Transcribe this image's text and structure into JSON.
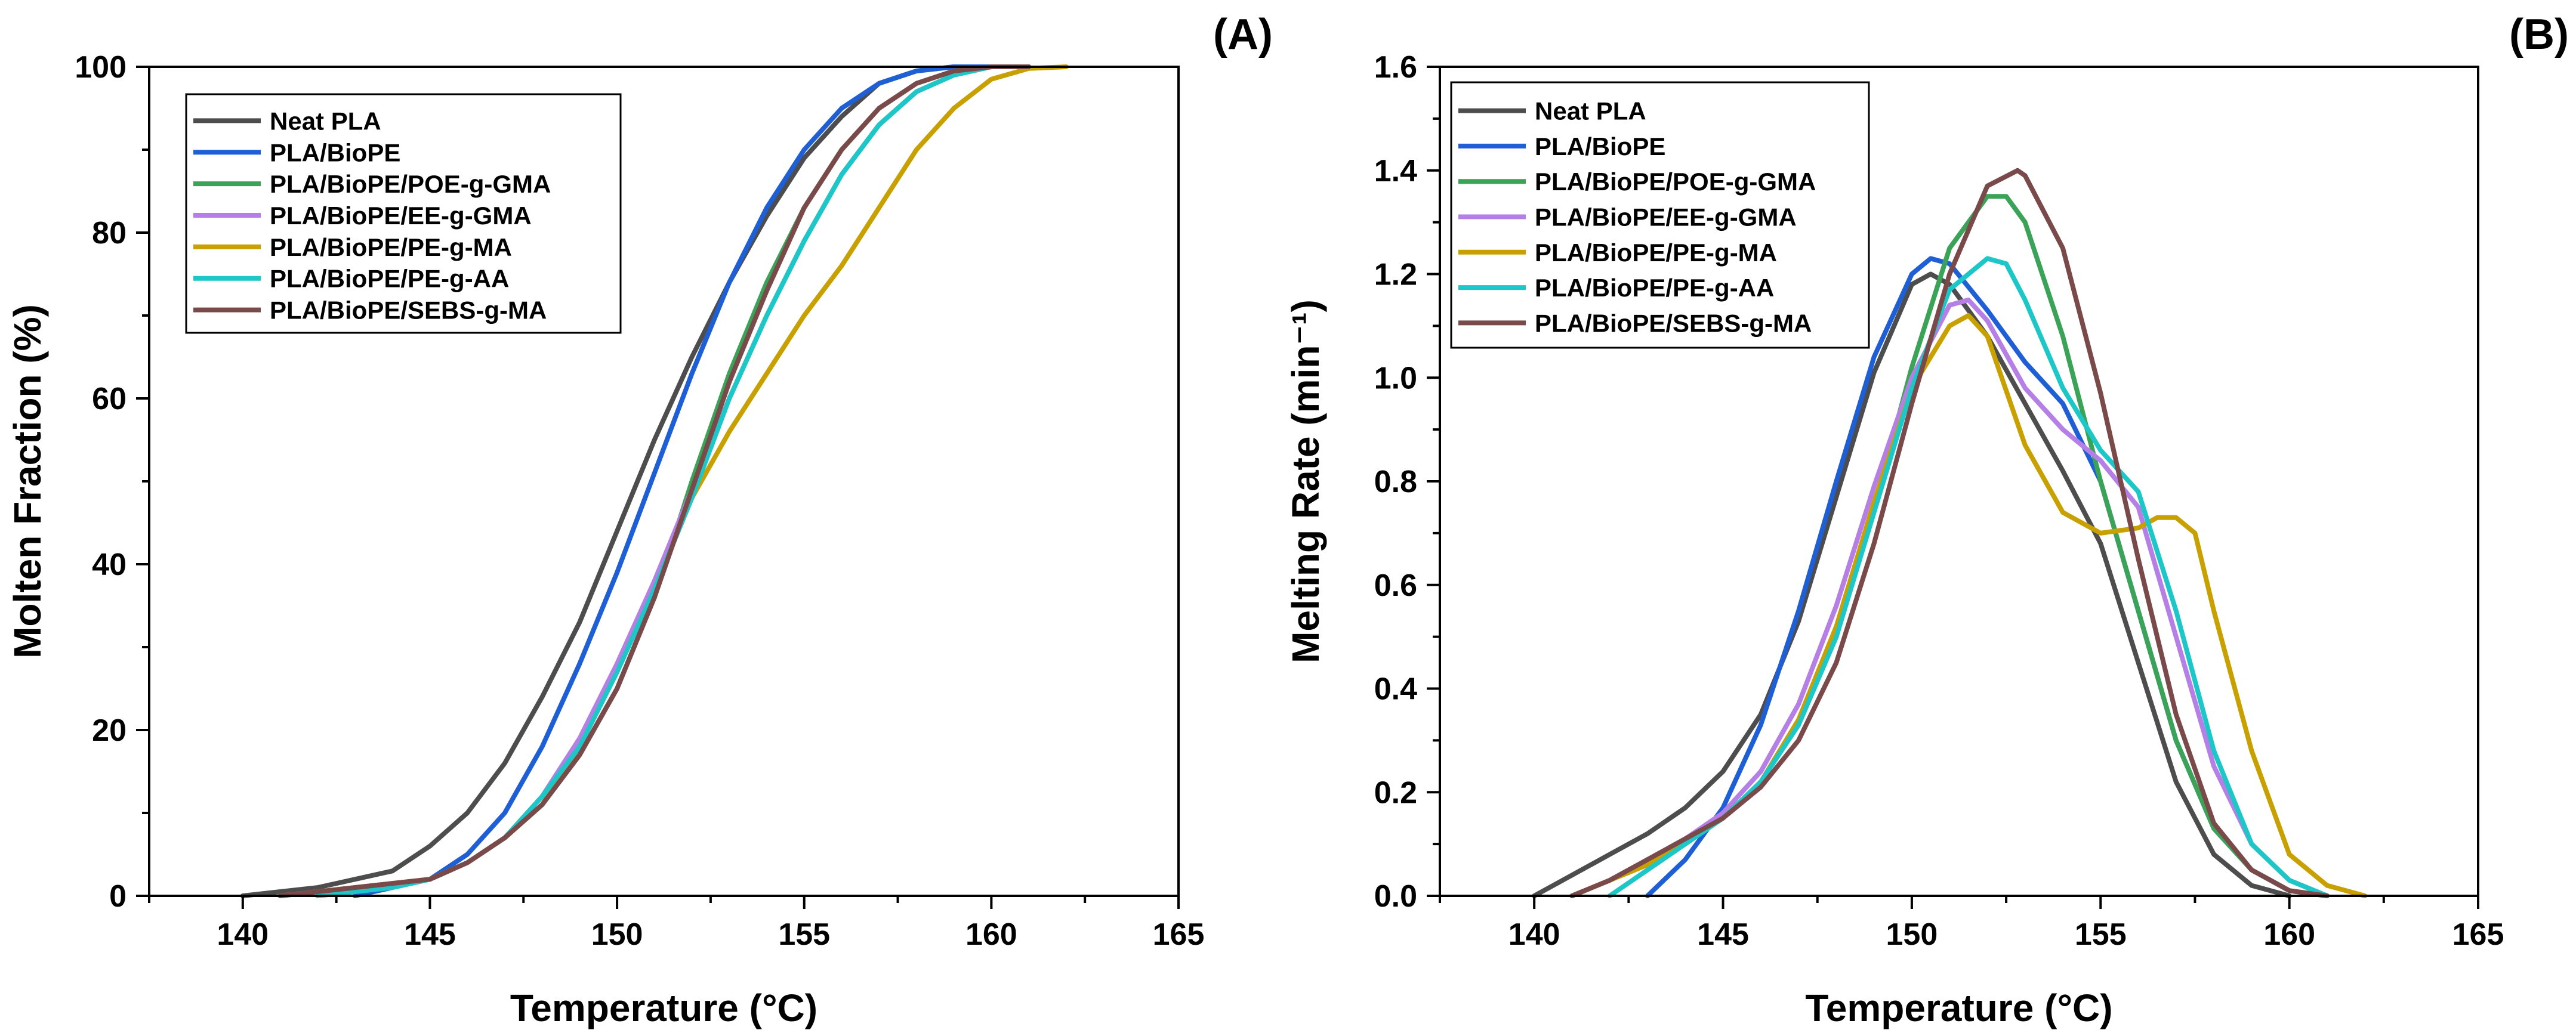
{
  "chart_data": [
    {
      "type": "line",
      "panel_label": "(A)",
      "xlabel": "Temperature (°C)",
      "ylabel": "Molten Fraction (%)",
      "xlim": [
        137.5,
        165
      ],
      "ylim": [
        0,
        100
      ],
      "xticks": [
        140,
        145,
        150,
        155,
        160,
        165
      ],
      "xtick_labels": [
        "140",
        "145",
        "150",
        "155",
        "160",
        "165"
      ],
      "yticks": [
        0,
        20,
        40,
        60,
        80,
        100
      ],
      "ytick_labels": [
        "0",
        "20",
        "40",
        "60",
        "80",
        "100"
      ],
      "legend_position": "top-left",
      "series": [
        {
          "name": "Neat PLA",
          "color": "#4d4d4d",
          "x": [
            140,
            142,
            144,
            145,
            146,
            147,
            148,
            149,
            150,
            151,
            152,
            153,
            154,
            155,
            156,
            157,
            158,
            159,
            160,
            161
          ],
          "y": [
            0,
            1,
            3,
            6,
            10,
            16,
            24,
            33,
            44,
            55,
            65,
            74,
            82,
            89,
            94,
            98,
            99.5,
            100,
            100,
            100
          ]
        },
        {
          "name": "PLA/BioPE",
          "color": "#1f5fd6",
          "x": [
            143,
            144,
            145,
            146,
            147,
            148,
            149,
            150,
            151,
            152,
            153,
            154,
            155,
            156,
            157,
            158,
            159,
            160
          ],
          "y": [
            0,
            1,
            2,
            5,
            10,
            18,
            28,
            39,
            51,
            63,
            74,
            83,
            90,
            95,
            98,
            99.5,
            100,
            100
          ]
        },
        {
          "name": "PLA/BioPE/POE-g-GMA",
          "color": "#3aa357",
          "x": [
            141,
            143,
            145,
            146,
            147,
            148,
            149,
            150,
            151,
            152,
            153,
            154,
            155,
            156,
            157,
            158,
            159,
            160,
            161
          ],
          "y": [
            0,
            1,
            2,
            4,
            7,
            11,
            17,
            25,
            36,
            50,
            63,
            74,
            83,
            90,
            95,
            98,
            99.5,
            100,
            100
          ]
        },
        {
          "name": "PLA/BioPE/EE-g-GMA",
          "color": "#b57fe6",
          "x": [
            141,
            143,
            145,
            146,
            147,
            148,
            149,
            150,
            151,
            152,
            153,
            154,
            155,
            156,
            157,
            158,
            159,
            160,
            161
          ],
          "y": [
            0,
            1,
            2,
            4,
            7,
            12,
            19,
            28,
            38,
            49,
            60,
            70,
            79,
            87,
            93,
            97,
            99,
            100,
            100
          ]
        },
        {
          "name": "PLA/BioPE/PE-g-MA",
          "color": "#c8a000",
          "x": [
            141,
            143,
            145,
            146,
            147,
            148,
            149,
            150,
            151,
            152,
            153,
            154,
            155,
            156,
            157,
            158,
            159,
            160,
            161,
            162
          ],
          "y": [
            0,
            1,
            2,
            4,
            7,
            11,
            18,
            27,
            37,
            48,
            56,
            63,
            70,
            76,
            83,
            90,
            95,
            98.5,
            99.8,
            100
          ]
        },
        {
          "name": "PLA/BioPE/PE-g-AA",
          "color": "#1ec7c7",
          "x": [
            142,
            144,
            145,
            146,
            147,
            148,
            149,
            150,
            151,
            152,
            153,
            154,
            155,
            156,
            157,
            158,
            159,
            160,
            161
          ],
          "y": [
            0,
            1,
            2,
            4,
            7,
            12,
            18,
            27,
            37,
            48,
            60,
            70,
            79,
            87,
            93,
            97,
            99,
            100,
            100
          ]
        },
        {
          "name": "PLA/BioPE/SEBS-g-MA",
          "color": "#7a4a4a",
          "x": [
            141,
            143,
            145,
            146,
            147,
            148,
            149,
            150,
            151,
            152,
            153,
            154,
            155,
            156,
            157,
            158,
            159,
            160,
            161
          ],
          "y": [
            0,
            1,
            2,
            4,
            7,
            11,
            17,
            25,
            36,
            49,
            62,
            73,
            83,
            90,
            95,
            98,
            99.5,
            100,
            100
          ]
        }
      ]
    },
    {
      "type": "line",
      "panel_label": "(B)",
      "xlabel": "Temperature (°C)",
      "ylabel": "Melting Rate (min⁻¹)",
      "xlim": [
        137.5,
        165
      ],
      "ylim": [
        0,
        1.6
      ],
      "xticks": [
        140,
        145,
        150,
        155,
        160,
        165
      ],
      "xtick_labels": [
        "140",
        "145",
        "150",
        "155",
        "160",
        "165"
      ],
      "yticks": [
        0,
        0.2,
        0.4,
        0.6,
        0.8,
        1.0,
        1.2,
        1.4,
        1.6
      ],
      "ytick_labels": [
        "0.0",
        "0.2",
        "0.4",
        "0.6",
        "0.8",
        "1.0",
        "1.2",
        "1.4",
        "1.6"
      ],
      "legend_position": "top-left",
      "series": [
        {
          "name": "Neat PLA",
          "color": "#4d4d4d",
          "x": [
            140,
            141,
            142,
            143,
            144,
            145,
            146,
            147,
            148,
            149,
            150,
            150.5,
            151,
            152,
            153,
            154,
            155,
            156,
            157,
            158,
            159,
            160
          ],
          "y": [
            0,
            0.04,
            0.08,
            0.12,
            0.17,
            0.24,
            0.35,
            0.53,
            0.77,
            1.01,
            1.18,
            1.2,
            1.18,
            1.08,
            0.95,
            0.82,
            0.68,
            0.45,
            0.22,
            0.08,
            0.02,
            0
          ]
        },
        {
          "name": "PLA/BioPE",
          "color": "#1f5fd6",
          "x": [
            143,
            144,
            145,
            146,
            147,
            148,
            149,
            150,
            150.5,
            151,
            152,
            153,
            154,
            155,
            156,
            157,
            158,
            159,
            160,
            161
          ],
          "y": [
            0,
            0.07,
            0.17,
            0.33,
            0.55,
            0.8,
            1.04,
            1.2,
            1.23,
            1.22,
            1.13,
            1.03,
            0.95,
            0.8,
            0.55,
            0.3,
            0.13,
            0.05,
            0.01,
            0
          ]
        },
        {
          "name": "PLA/BioPE/POE-g-GMA",
          "color": "#3aa357",
          "x": [
            141,
            142,
            143,
            144,
            145,
            146,
            147,
            148,
            149,
            150,
            151,
            152,
            152.5,
            153,
            154,
            155,
            156,
            157,
            158,
            159,
            160,
            161
          ],
          "y": [
            0,
            0.03,
            0.07,
            0.11,
            0.15,
            0.22,
            0.33,
            0.5,
            0.75,
            1.02,
            1.25,
            1.35,
            1.35,
            1.3,
            1.08,
            0.8,
            0.55,
            0.3,
            0.13,
            0.05,
            0.01,
            0
          ]
        },
        {
          "name": "PLA/BioPE/EE-g-GMA",
          "color": "#b57fe6",
          "x": [
            141,
            142,
            143,
            144,
            145,
            146,
            147,
            148,
            149,
            150,
            151,
            151.5,
            152,
            153,
            154,
            155,
            156,
            157,
            158,
            159,
            160,
            161
          ],
          "y": [
            0,
            0.03,
            0.07,
            0.11,
            0.16,
            0.24,
            0.37,
            0.56,
            0.79,
            1.0,
            1.14,
            1.15,
            1.11,
            0.98,
            0.9,
            0.84,
            0.75,
            0.5,
            0.25,
            0.1,
            0.03,
            0
          ]
        },
        {
          "name": "PLA/BioPE/PE-g-MA",
          "color": "#c8a000",
          "x": [
            141,
            142,
            143,
            144,
            145,
            146,
            147,
            148,
            149,
            150,
            151,
            151.5,
            152,
            153,
            154,
            155,
            156,
            156.5,
            157,
            157.5,
            158,
            159,
            160,
            161,
            162
          ],
          "y": [
            0,
            0.03,
            0.06,
            0.1,
            0.15,
            0.22,
            0.34,
            0.52,
            0.76,
            0.98,
            1.1,
            1.12,
            1.08,
            0.87,
            0.74,
            0.7,
            0.71,
            0.73,
            0.73,
            0.7,
            0.55,
            0.28,
            0.08,
            0.02,
            0
          ]
        },
        {
          "name": "PLA/BioPE/PE-g-AA",
          "color": "#1ec7c7",
          "x": [
            142,
            143,
            144,
            145,
            146,
            147,
            148,
            149,
            150,
            151,
            152,
            152.5,
            153,
            154,
            155,
            156,
            157,
            158,
            159,
            160,
            161
          ],
          "y": [
            0,
            0.05,
            0.1,
            0.15,
            0.22,
            0.33,
            0.5,
            0.74,
            0.98,
            1.17,
            1.23,
            1.22,
            1.15,
            0.98,
            0.86,
            0.78,
            0.55,
            0.28,
            0.1,
            0.03,
            0
          ]
        },
        {
          "name": "PLA/BioPE/SEBS-g-MA",
          "color": "#7a4a4a",
          "x": [
            141,
            142,
            143,
            144,
            145,
            146,
            147,
            148,
            149,
            150,
            151,
            152,
            152.8,
            153,
            154,
            155,
            156,
            157,
            158,
            159,
            160,
            161
          ],
          "y": [
            0,
            0.03,
            0.07,
            0.11,
            0.15,
            0.21,
            0.3,
            0.45,
            0.68,
            0.95,
            1.2,
            1.37,
            1.4,
            1.39,
            1.25,
            0.97,
            0.65,
            0.35,
            0.14,
            0.05,
            0.01,
            0
          ]
        }
      ]
    }
  ]
}
